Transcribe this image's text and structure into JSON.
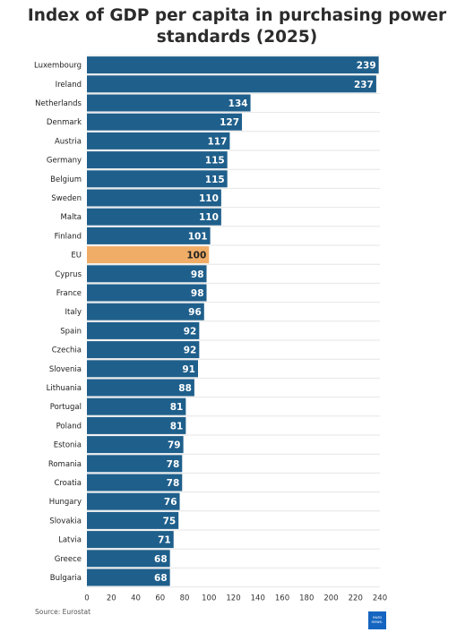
{
  "title_line1": "Index of GDP per capita in purchasing power",
  "title_line2": "standards (2025)",
  "source": "Source: Eurostat",
  "logo": {
    "line1": "euro",
    "line2": "news."
  },
  "colors": {
    "bar": "#1f5f8b",
    "highlight": "#f0ad67",
    "grid": "#e6e6e6"
  },
  "chart_data": {
    "type": "bar",
    "orientation": "horizontal",
    "title": "Index of GDP per capita in purchasing power standards (2025)",
    "categories": [
      "Luxembourg",
      "Ireland",
      "Netherlands",
      "Denmark",
      "Austria",
      "Germany",
      "Belgium",
      "Sweden",
      "Malta",
      "Finland",
      "EU",
      "Cyprus",
      "France",
      "Italy",
      "Spain",
      "Czechia",
      "Slovenia",
      "Lithuania",
      "Portugal",
      "Poland",
      "Estonia",
      "Romania",
      "Croatia",
      "Hungary",
      "Slovakia",
      "Latvia",
      "Greece",
      "Bulgaria"
    ],
    "values": [
      239,
      237,
      134,
      127,
      117,
      115,
      115,
      110,
      110,
      101,
      100,
      98,
      98,
      96,
      92,
      92,
      91,
      88,
      81,
      81,
      79,
      78,
      78,
      76,
      75,
      71,
      68,
      68
    ],
    "highlight": "EU",
    "xlim": [
      0,
      240
    ],
    "xticks": [
      "0",
      "20",
      "40",
      "60",
      "80",
      "100",
      "120",
      "140",
      "160",
      "180",
      "200",
      "220",
      "240"
    ],
    "grid": true,
    "xlabel": "",
    "ylabel": ""
  }
}
